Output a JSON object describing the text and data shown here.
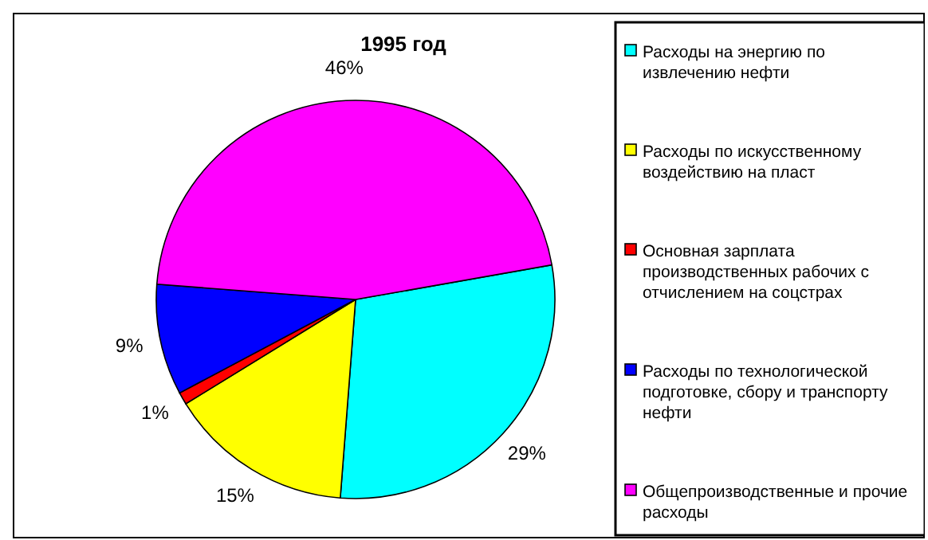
{
  "chart_data": {
    "type": "pie",
    "title": "1995 год",
    "categories": [
      "Расходы на энергию по извлечению нефти",
      "Расходы по искусственному воздействию на пласт",
      "Основная зарплата производственных рабочих с отчислением на соцстрах",
      "Расходы по технологической подготовке, сбору и транспорту нефти",
      "Общепроизводственные и прочие расходы"
    ],
    "values": [
      29,
      15,
      1,
      9,
      46
    ],
    "colors": [
      "#00ffff",
      "#ffff00",
      "#ff0000",
      "#0000ff",
      "#ff00ff"
    ],
    "value_labels": [
      "29%",
      "15%",
      "1%",
      "9%",
      "46%"
    ],
    "legend": "right"
  }
}
